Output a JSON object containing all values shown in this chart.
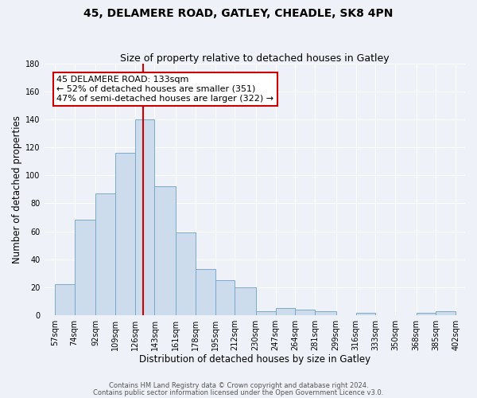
{
  "title": "45, DELAMERE ROAD, GATLEY, CHEADLE, SK8 4PN",
  "subtitle": "Size of property relative to detached houses in Gatley",
  "xlabel": "Distribution of detached houses by size in Gatley",
  "ylabel": "Number of detached properties",
  "bar_left_edges": [
    57,
    74,
    92,
    109,
    126,
    143,
    161,
    178,
    195,
    212,
    230,
    247,
    264,
    281,
    299,
    316,
    333,
    350,
    368,
    385
  ],
  "bar_widths": [
    17,
    18,
    17,
    17,
    17,
    18,
    17,
    17,
    17,
    18,
    17,
    17,
    17,
    18,
    17,
    17,
    17,
    18,
    17,
    17
  ],
  "bar_heights": [
    22,
    68,
    87,
    116,
    140,
    92,
    59,
    33,
    25,
    20,
    3,
    5,
    4,
    3,
    0,
    2,
    0,
    0,
    2,
    3
  ],
  "bar_color": "#ccdcec",
  "bar_edgecolor": "#7aaac8",
  "tick_labels": [
    "57sqm",
    "74sqm",
    "92sqm",
    "109sqm",
    "126sqm",
    "143sqm",
    "161sqm",
    "178sqm",
    "195sqm",
    "212sqm",
    "230sqm",
    "247sqm",
    "264sqm",
    "281sqm",
    "299sqm",
    "316sqm",
    "333sqm",
    "350sqm",
    "368sqm",
    "385sqm",
    "402sqm"
  ],
  "tick_positions": [
    57,
    74,
    92,
    109,
    126,
    143,
    161,
    178,
    195,
    212,
    230,
    247,
    264,
    281,
    299,
    316,
    333,
    350,
    368,
    385,
    402
  ],
  "xlim_left": 48,
  "xlim_right": 410,
  "ylim": [
    0,
    180
  ],
  "yticks": [
    0,
    20,
    40,
    60,
    80,
    100,
    120,
    140,
    160,
    180
  ],
  "vline_x": 133,
  "vline_color": "#cc0000",
  "annotation_title": "45 DELAMERE ROAD: 133sqm",
  "annotation_line1": "← 52% of detached houses are smaller (351)",
  "annotation_line2": "47% of semi-detached houses are larger (322) →",
  "footer_line1": "Contains HM Land Registry data © Crown copyright and database right 2024.",
  "footer_line2": "Contains public sector information licensed under the Open Government Licence v3.0.",
  "bg_color": "#eef2f8",
  "plot_bg_color": "#eef2f8",
  "grid_color": "#ffffff",
  "title_fontsize": 10,
  "subtitle_fontsize": 9,
  "axis_label_fontsize": 8.5,
  "tick_fontsize": 7,
  "annotation_fontsize": 8,
  "footer_fontsize": 6
}
